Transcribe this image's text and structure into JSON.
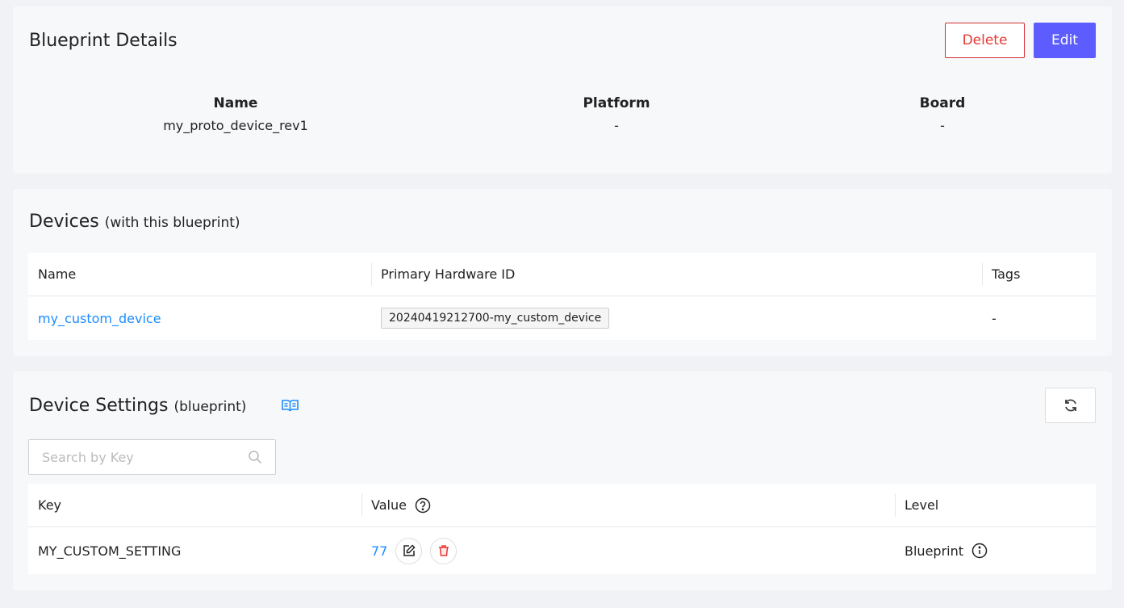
{
  "details": {
    "title": "Blueprint Details",
    "delete_label": "Delete",
    "edit_label": "Edit",
    "fields": [
      {
        "label": "Name",
        "value": "my_proto_device_rev1"
      },
      {
        "label": "Platform",
        "value": "-"
      },
      {
        "label": "Board",
        "value": "-"
      }
    ]
  },
  "devices": {
    "title": "Devices",
    "subtitle": "(with this blueprint)",
    "columns": [
      "Name",
      "Primary Hardware ID",
      "Tags"
    ],
    "rows": [
      {
        "name": "my_custom_device",
        "hardware_id": "20240419212700-my_custom_device",
        "tags": "-"
      }
    ]
  },
  "settings": {
    "title": "Device Settings",
    "subtitle": "(blueprint)",
    "search_placeholder": "Search by Key",
    "columns": [
      "Key",
      "Value",
      "Level"
    ],
    "rows": [
      {
        "key": "MY_CUSTOM_SETTING",
        "value": "77",
        "level": "Blueprint"
      }
    ]
  },
  "colors": {
    "accent": "#5c5cff",
    "danger": "#e53935",
    "link": "#1a8cff"
  }
}
